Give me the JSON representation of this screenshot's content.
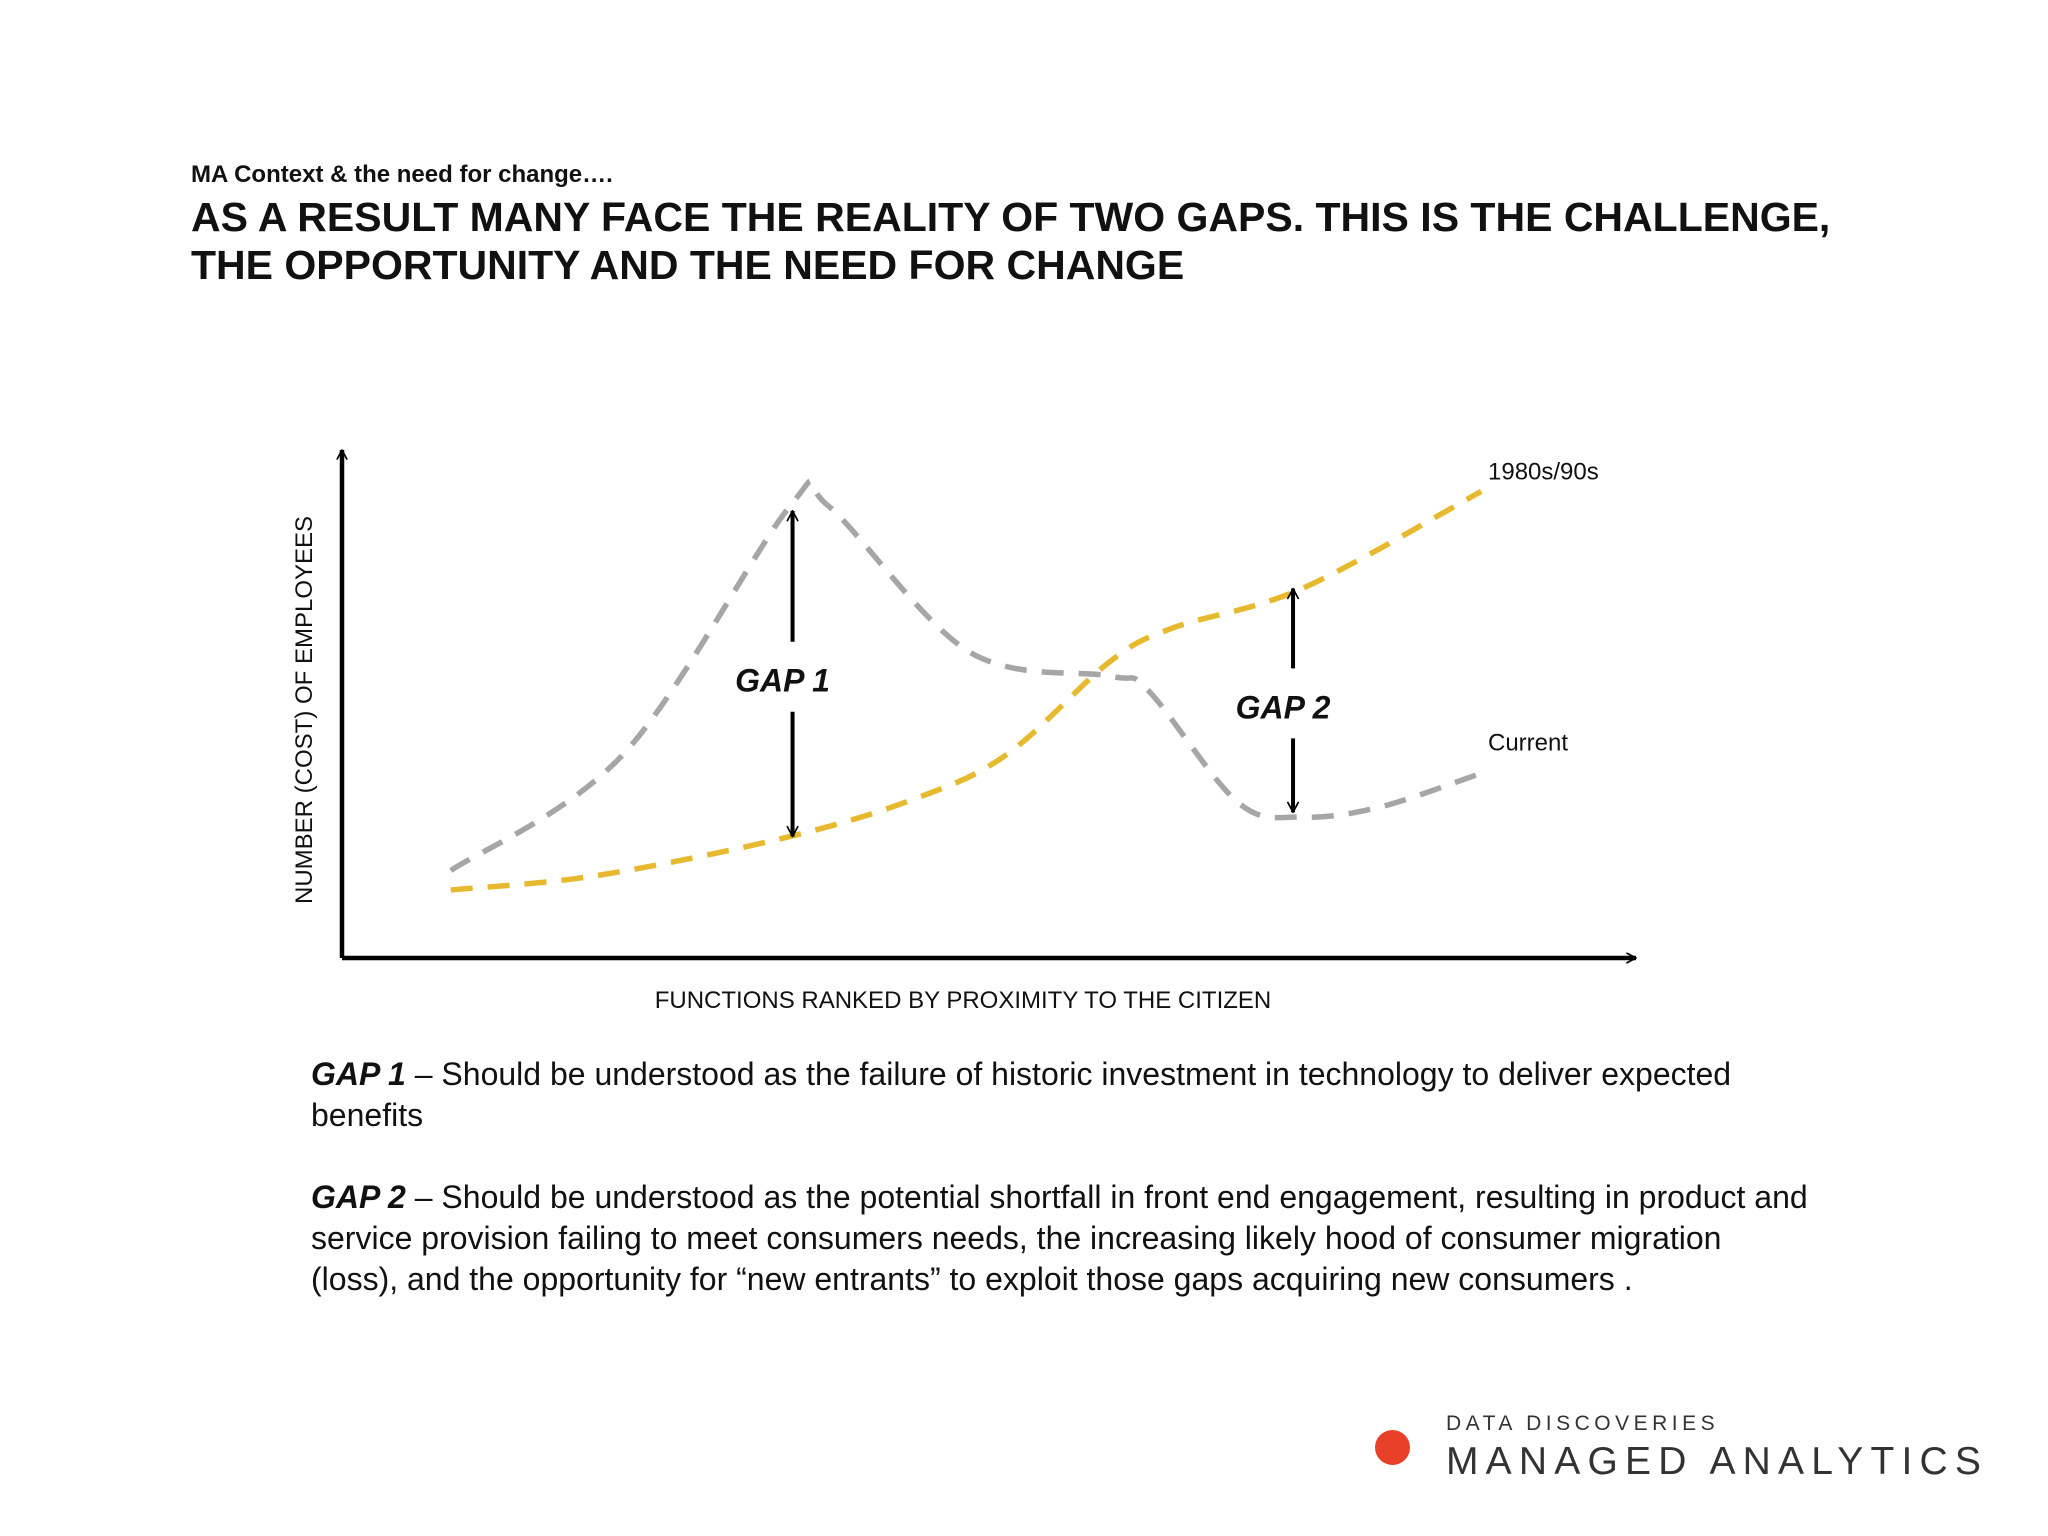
{
  "header": {
    "kicker": "MA Context & the need for change….",
    "headline": "AS A RESULT MANY FACE THE REALITY OF TWO GAPS. THIS IS THE CHALLENGE, THE OPPORTUNITY AND THE NEED FOR CHANGE"
  },
  "chart_data": {
    "type": "line",
    "xlabel": "FUNCTIONS RANKED BY PROXIMITY TO THE CITIZEN",
    "ylabel": "NUMBER (COST) OF EMPLOYEES",
    "x_range": [
      0,
      100
    ],
    "y_range": [
      0,
      100
    ],
    "ticks": "none",
    "grid": false,
    "series": [
      {
        "name": "1980s/90s",
        "color": "#e6b92e",
        "style": "dashed",
        "x": [
          8.5,
          20,
          35,
          45,
          52,
          60,
          65,
          75,
          89
        ],
        "y": [
          14,
          17,
          25,
          33,
          42,
          61,
          68,
          76,
          96
        ]
      },
      {
        "name": "Current",
        "color": "#a6a6a6",
        "style": "dashed",
        "x": [
          8.5,
          22,
          35,
          38,
          49,
          60,
          63,
          70,
          75,
          81,
          89
        ],
        "y": [
          18,
          42,
          93,
          93,
          63,
          58,
          55,
          32,
          29,
          31,
          38
        ]
      }
    ],
    "annotations": [
      {
        "label": "GAP 1",
        "x": 35.2,
        "y_from": 25,
        "y_to": 92
      },
      {
        "label": "GAP 2",
        "x": 74.3,
        "y_from": 30,
        "y_to": 76
      }
    ]
  },
  "descriptions": [
    {
      "term": "GAP 1",
      "text": " – Should be understood as the failure of historic investment in technology to deliver expected benefits"
    },
    {
      "term": "GAP 2",
      "text": " – Should be understood as the potential shortfall in front end engagement, resulting in product and service provision failing to meet consumers needs, the increasing likely hood of consumer migration (loss), and the opportunity for “new entrants” to exploit those gaps acquiring new consumers ."
    }
  ],
  "logo": {
    "line1": "DATA DISCOVERIES",
    "line2": "MANAGED ANALYTICS",
    "dot_color": "#e9402a"
  }
}
